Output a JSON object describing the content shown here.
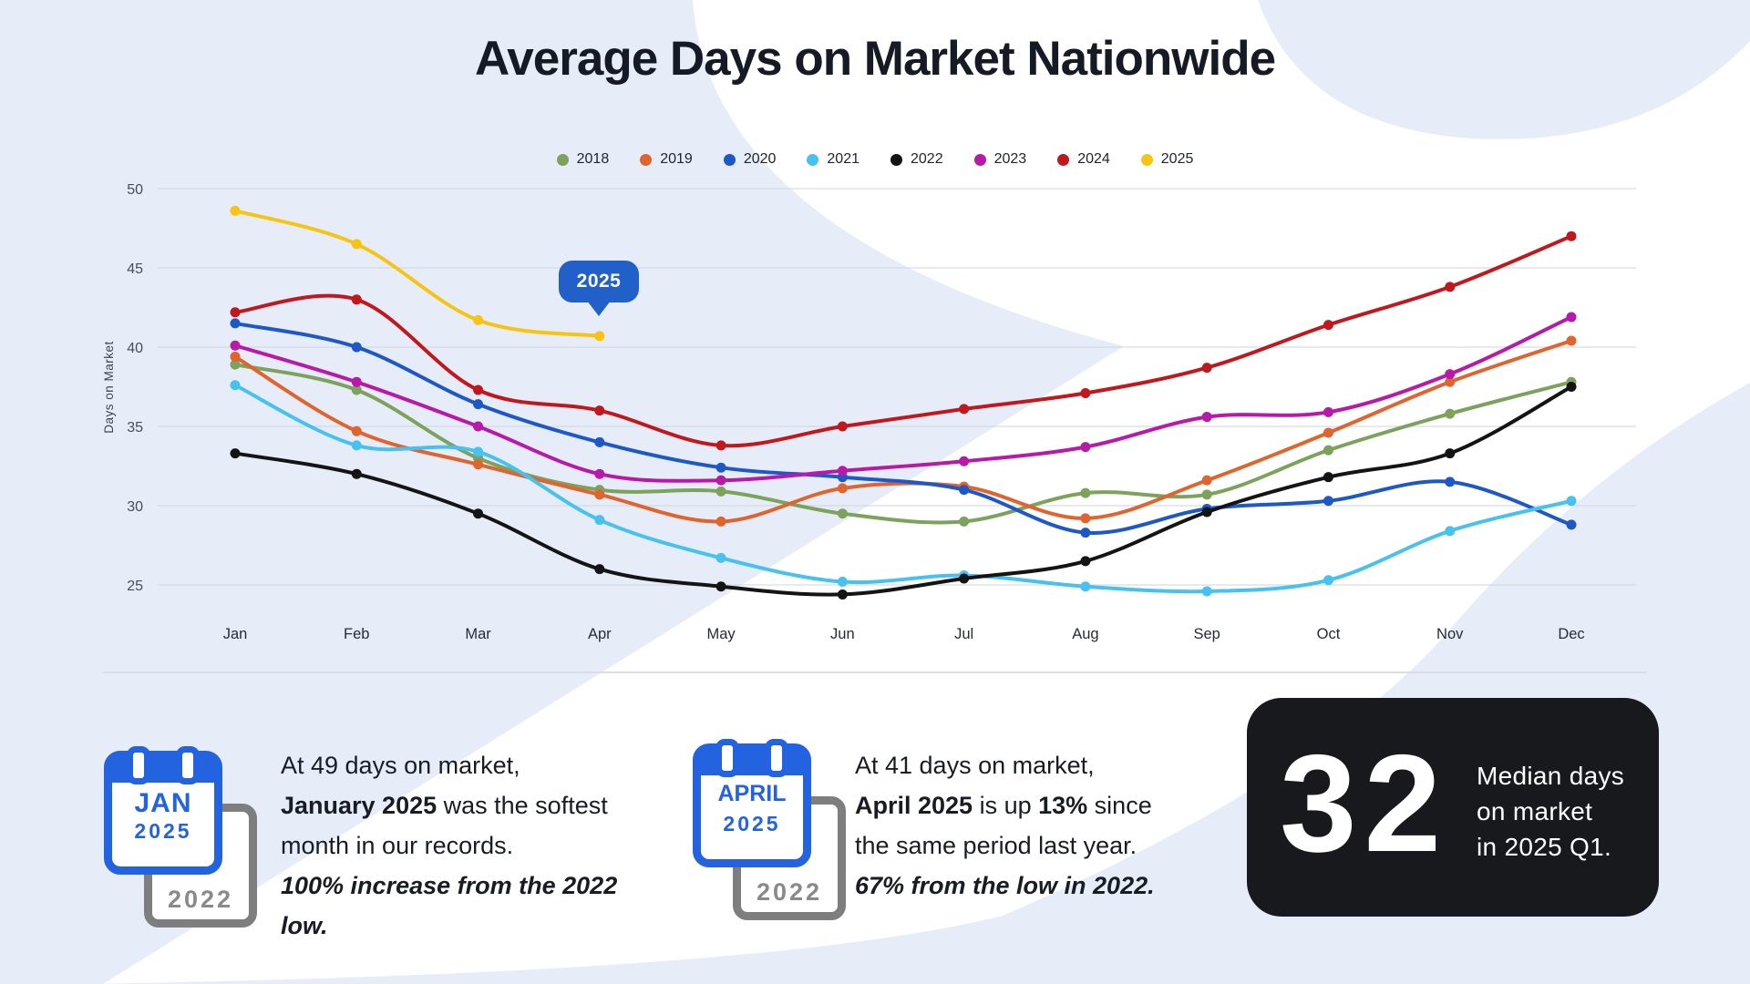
{
  "title": "Average Days on Market Nationwide",
  "callout": {
    "label": "2025"
  },
  "chart_data": {
    "type": "line",
    "title": "Average Days on Market Nationwide",
    "xlabel": "",
    "ylabel": "Days on Market",
    "categories": [
      "Jan",
      "Feb",
      "Mar",
      "Apr",
      "May",
      "Jun",
      "Jul",
      "Aug",
      "Sep",
      "Oct",
      "Nov",
      "Dec"
    ],
    "y_ticks": [
      50,
      45,
      40,
      35,
      30,
      25
    ],
    "ylim": [
      23,
      51
    ],
    "grid": "horizontal",
    "legend_position": "top",
    "annotation": {
      "label": "2025",
      "attached_to": "Apr 2025 point"
    },
    "series": [
      {
        "name": "2018",
        "color": "#7ca25c",
        "values": [
          38.9,
          37.3,
          33.0,
          31.0,
          30.9,
          29.5,
          29.0,
          30.8,
          30.7,
          33.5,
          35.8,
          37.8
        ]
      },
      {
        "name": "2019",
        "color": "#e0642e",
        "values": [
          39.4,
          34.7,
          32.6,
          30.7,
          29.0,
          31.1,
          31.2,
          29.2,
          31.6,
          34.6,
          37.8,
          40.4
        ]
      },
      {
        "name": "2020",
        "color": "#1d57c8",
        "values": [
          41.5,
          40.0,
          36.4,
          34.0,
          32.4,
          31.8,
          31.0,
          28.3,
          29.8,
          30.3,
          31.5,
          28.8
        ]
      },
      {
        "name": "2021",
        "color": "#47c1f0",
        "values": [
          37.6,
          33.8,
          33.4,
          29.1,
          26.7,
          25.2,
          25.6,
          24.9,
          24.6,
          25.3,
          28.4,
          30.3
        ]
      },
      {
        "name": "2022",
        "color": "#141414",
        "values": [
          33.3,
          32.0,
          29.5,
          26.0,
          24.9,
          24.4,
          25.4,
          26.5,
          29.6,
          31.8,
          33.3,
          37.5
        ]
      },
      {
        "name": "2023",
        "color": "#b71aa8",
        "values": [
          40.1,
          37.8,
          35.0,
          32.0,
          31.6,
          32.2,
          32.8,
          33.7,
          35.6,
          35.9,
          38.3,
          41.9
        ]
      },
      {
        "name": "2024",
        "color": "#c0181d",
        "values": [
          42.2,
          43.0,
          37.3,
          36.0,
          33.8,
          35.0,
          36.1,
          37.1,
          38.7,
          41.4,
          43.8,
          47.0
        ]
      },
      {
        "name": "2025",
        "color": "#f7c414",
        "values": [
          48.6,
          46.5,
          41.7,
          40.7
        ]
      }
    ]
  },
  "cards": [
    {
      "calendar": {
        "month": "JAN",
        "year": "2025",
        "back_year": "2022"
      },
      "text": [
        {
          "t": "At 49 days on market,"
        },
        {
          "br": true
        },
        {
          "t": "January 2025",
          "b": true
        },
        {
          "t": " was the softest"
        },
        {
          "br": true
        },
        {
          "t": "month in our records."
        },
        {
          "br": true
        },
        {
          "t": "100% increase from the 2022",
          "b": true,
          "i": true
        },
        {
          "br": true
        },
        {
          "t": "low.",
          "b": true,
          "i": true
        }
      ]
    },
    {
      "calendar": {
        "month": "APRIL",
        "year": "2025",
        "back_year": "2022"
      },
      "text": [
        {
          "t": "At 41 days on market,"
        },
        {
          "br": true
        },
        {
          "t": "April 2025",
          "b": true
        },
        {
          "t": " is up "
        },
        {
          "t": "13%",
          "b": true
        },
        {
          "t": " since"
        },
        {
          "br": true
        },
        {
          "t": "the same period last year."
        },
        {
          "br": true
        },
        {
          "t": "67% from the low in 2022.",
          "b": true,
          "i": true
        }
      ]
    }
  ],
  "stat_card": {
    "value": "32",
    "text": [
      {
        "t": "Median days"
      },
      {
        "br": true
      },
      {
        "t": "on market"
      },
      {
        "br": true
      },
      {
        "t": "in 2025 Q1."
      }
    ]
  },
  "colors": {
    "background_tint": "#e7edf8",
    "white": "#ffffff",
    "callout_bg": "#2160c8",
    "calendar_blue": "#2363e0",
    "calendar_gray": "#7e7e7e",
    "stat_card_bg": "#17191d",
    "gridline": "#ccd3df",
    "title_text": "#151a24"
  }
}
